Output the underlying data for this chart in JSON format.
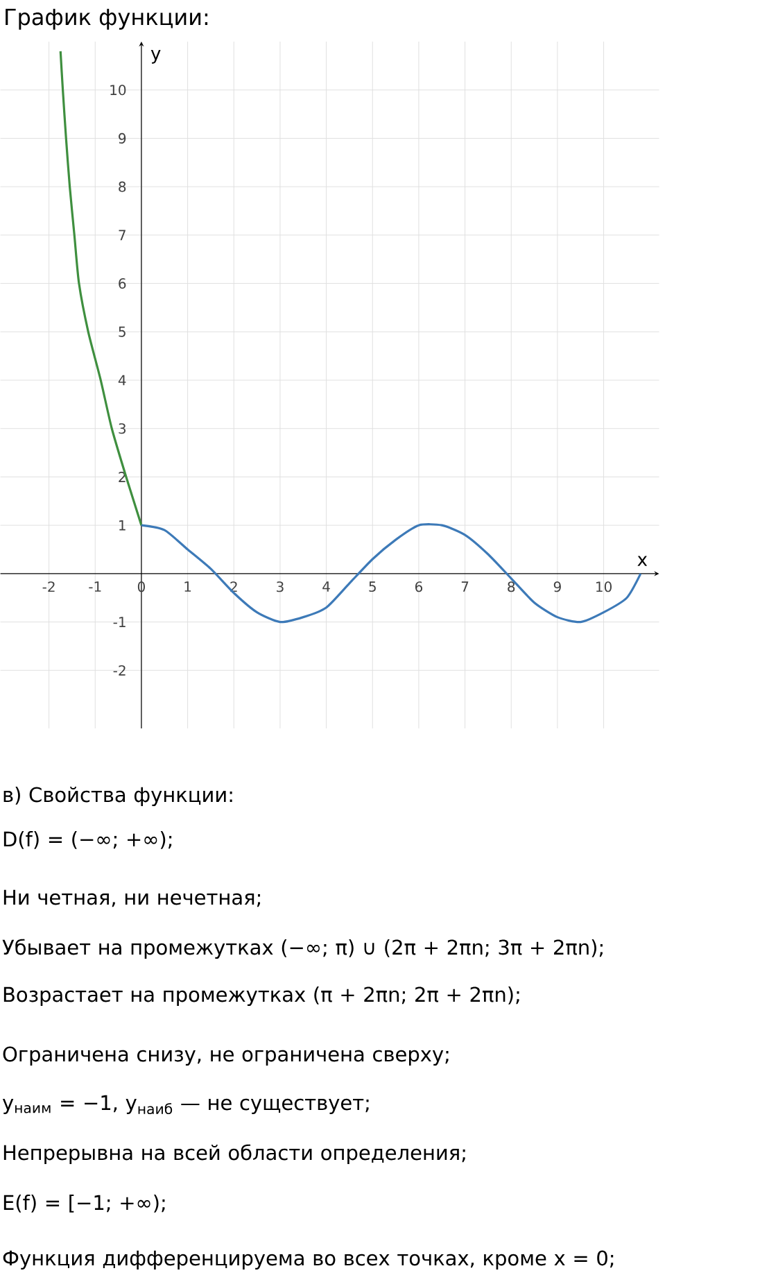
{
  "chart_data": {
    "type": "line",
    "title": "График функции:",
    "xlabel": "x",
    "ylabel": "y",
    "xlim": [
      -3.05,
      11.2
    ],
    "ylim": [
      -3.2,
      11
    ],
    "xticks": [
      -2,
      -1,
      0,
      1,
      2,
      3,
      4,
      5,
      6,
      7,
      8,
      9,
      10
    ],
    "yticks": [
      -2,
      -1,
      1,
      2,
      3,
      4,
      5,
      6,
      7,
      8,
      9,
      10
    ],
    "grid": true,
    "marker": "none",
    "line_style": "solid",
    "series": [
      {
        "color": "#3f8f3f",
        "x": [
          -1.75,
          -1.7,
          -1.63,
          -1.55,
          -1.45,
          -1.35,
          -1.15,
          -0.88,
          -0.64,
          -0.33,
          0
        ],
        "values": [
          10.8,
          10,
          9,
          8,
          7,
          6,
          5,
          4,
          3,
          2,
          1
        ]
      },
      {
        "color": "#3d7ab8",
        "x": [
          0,
          0.5,
          1,
          1.5,
          2,
          2.5,
          3,
          3.5,
          4,
          4.5,
          5,
          5.5,
          6,
          6.5,
          7,
          7.5,
          8,
          8.5,
          9,
          9.5,
          10,
          10.5,
          10.8
        ],
        "values": [
          1,
          0.9,
          0.5,
          0.1,
          -0.4,
          -0.8,
          -1,
          -0.9,
          -0.7,
          -0.2,
          0.3,
          0.7,
          1,
          1,
          0.8,
          0.4,
          -0.1,
          -0.6,
          -0.9,
          -1,
          -0.8,
          -0.5,
          0
        ]
      }
    ],
    "annotations": [
      "в) Свойства функции:",
      "D(f) = (−∞; +∞);",
      "Ни четная, ни нечетная;",
      "Убывает на промежутках (−∞; π) ∪ (2π + 2πn; 3π + 2πn);",
      "Возрастает на промежутках (π + 2πn; 2π + 2πn);",
      "Ограничена снизу, не ограничена сверху;",
      "y$_{наим}$ = −1,  y$_{наиб}$ — не существует;",
      "Непрерывна на всей области определения;",
      "E(f) = [−1; +∞);",
      "Функция дифференцируема во всех точках, кроме x = 0;"
    ]
  }
}
